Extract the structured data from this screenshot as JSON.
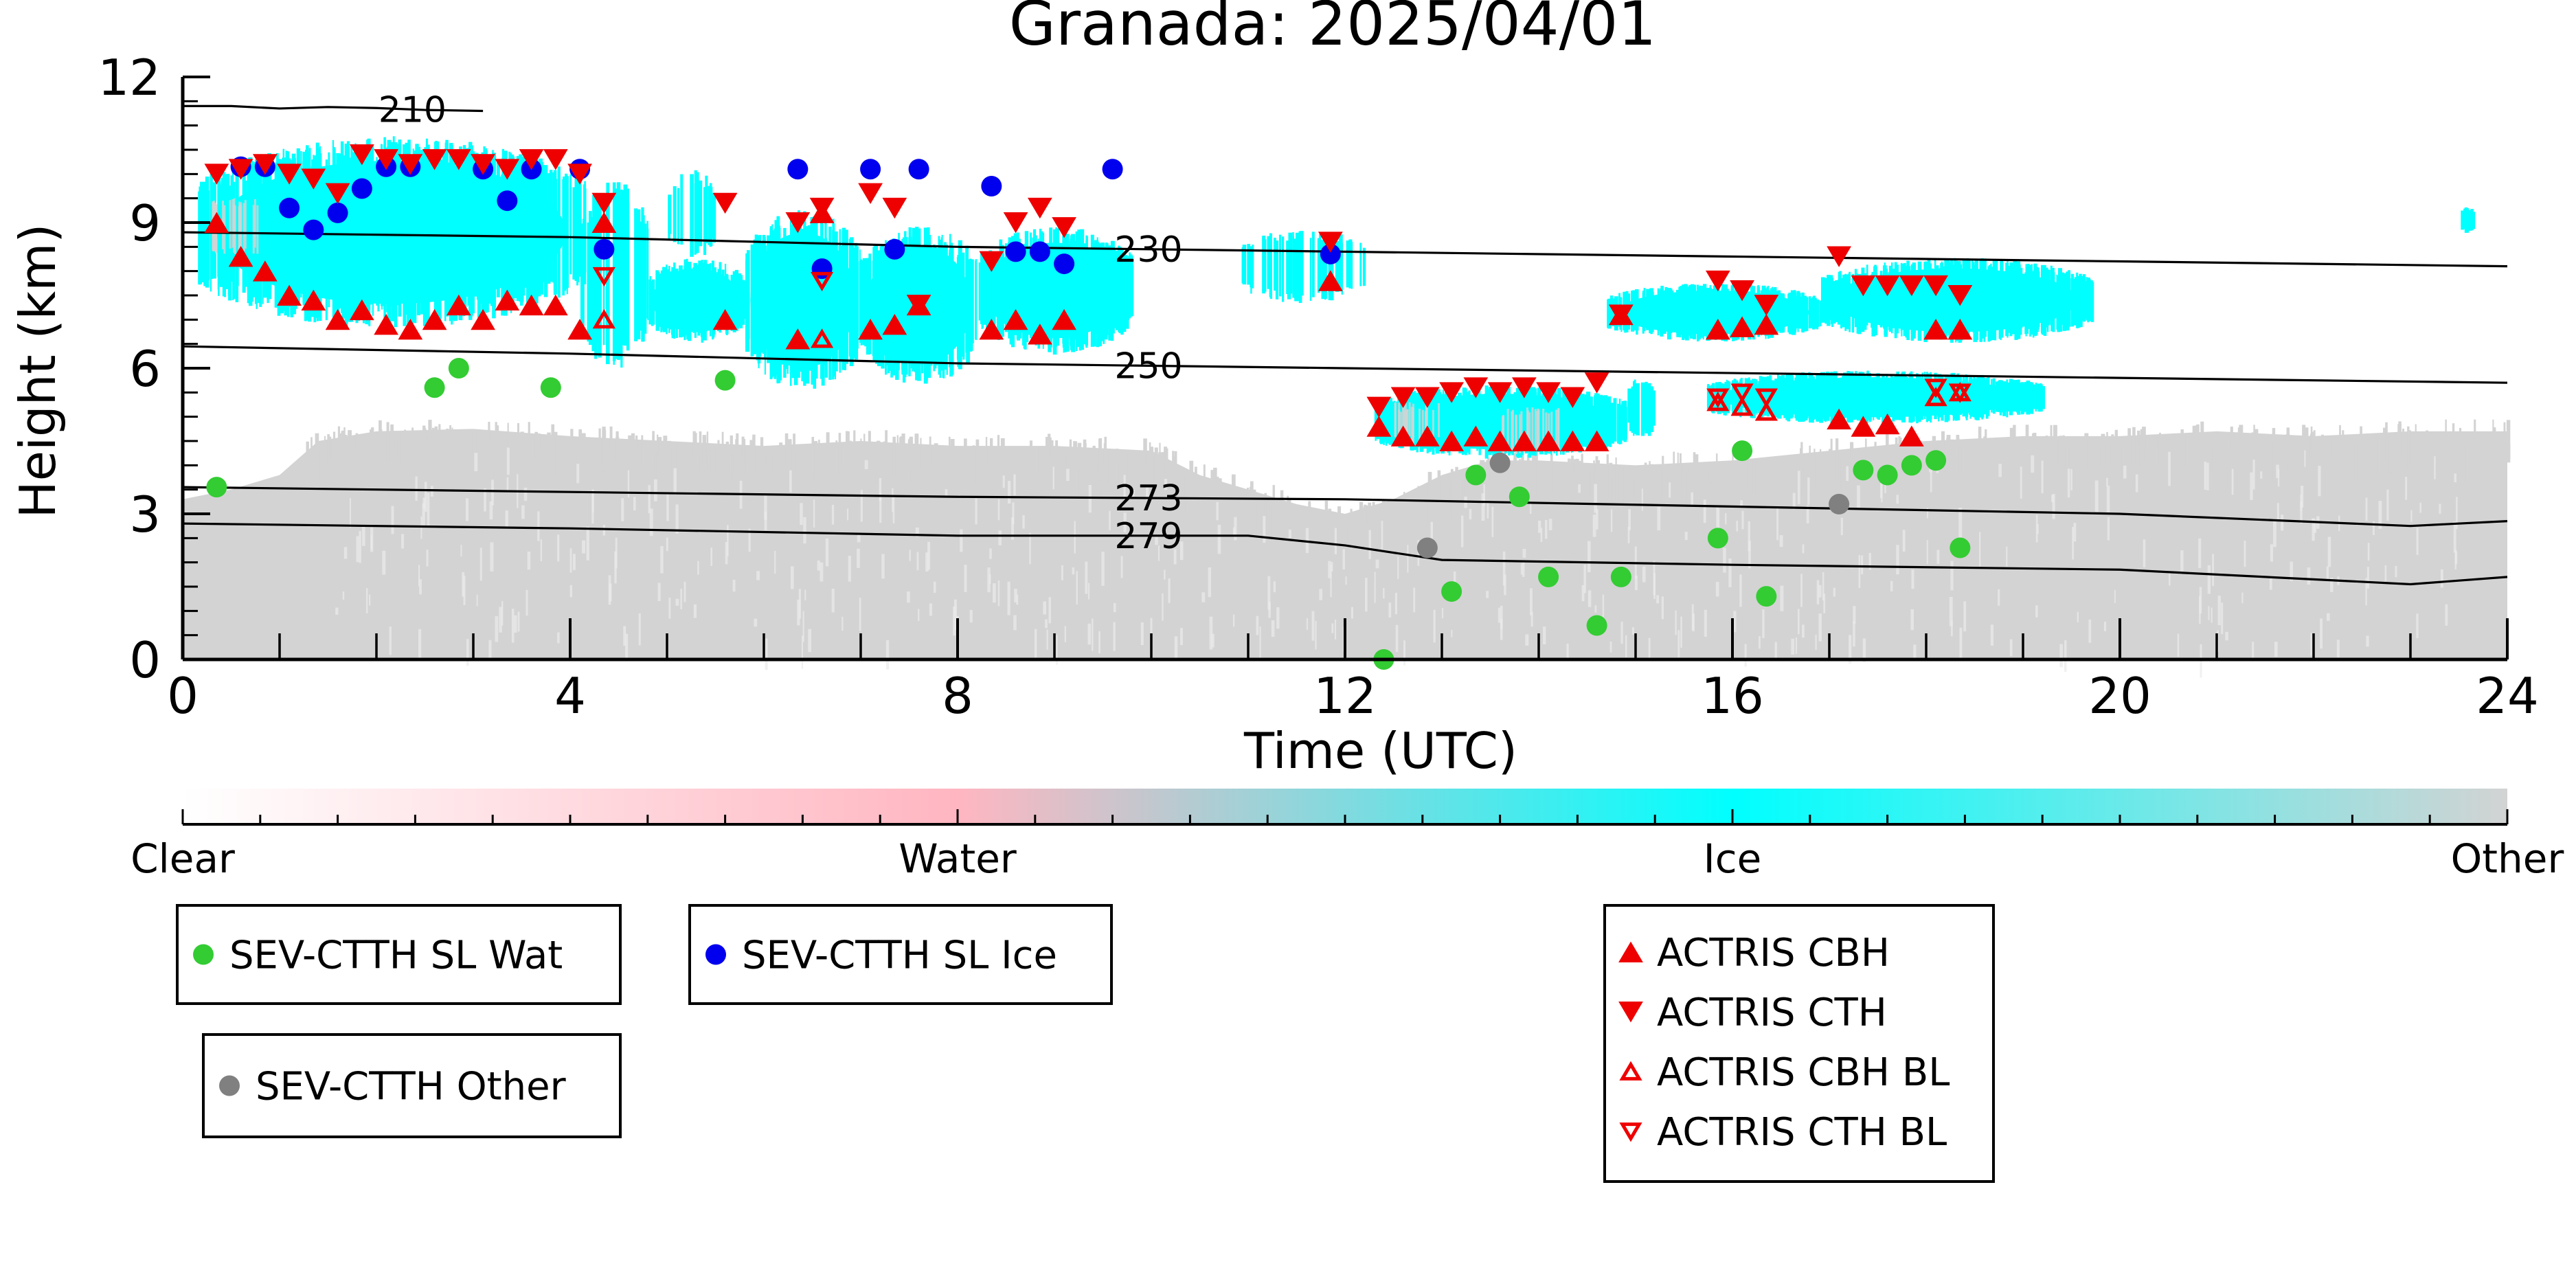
{
  "chart_data": {
    "type": "scatter",
    "title": "Granada: 2025/04/01",
    "xlabel": "Time (UTC)",
    "ylabel": "Height (km)",
    "xlim": [
      0,
      24
    ],
    "ylim": [
      0,
      12
    ],
    "xticks": [
      0,
      4,
      8,
      12,
      16,
      20,
      24
    ],
    "yticks": [
      0,
      3,
      6,
      9,
      12
    ],
    "colorbar": {
      "labels": [
        "Clear",
        "Water",
        "Ice",
        "Other"
      ],
      "colors": [
        "#ffffff",
        "#ffb6c1",
        "#00ffff",
        "#d3d3d3"
      ]
    },
    "cloud_classes": {
      "other_color": "#d3d3d3",
      "ice_color": "#00ffff"
    },
    "isotherms": [
      {
        "label": "210",
        "x": [
          0,
          0.5,
          1.0,
          1.5,
          2.0,
          2.5,
          3.1
        ],
        "y": [
          11.4,
          11.4,
          11.35,
          11.38,
          11.36,
          11.32,
          11.3
        ]
      },
      {
        "label": "230",
        "x": [
          0,
          4,
          8,
          12,
          16,
          20,
          24
        ],
        "y": [
          8.8,
          8.7,
          8.5,
          8.4,
          8.3,
          8.2,
          8.1
        ]
      },
      {
        "label": "250",
        "x": [
          0,
          4,
          8,
          12,
          16,
          20,
          24
        ],
        "y": [
          6.45,
          6.3,
          6.1,
          6.0,
          5.9,
          5.8,
          5.7
        ]
      },
      {
        "label": "273",
        "x": [
          0,
          4,
          8,
          12,
          16,
          20,
          23,
          24
        ],
        "y": [
          3.55,
          3.45,
          3.35,
          3.3,
          3.15,
          3.0,
          2.75,
          2.85
        ]
      },
      {
        "label": "279",
        "x": [
          0,
          4,
          8,
          11,
          12,
          13,
          16,
          20,
          23,
          24
        ],
        "y": [
          2.8,
          2.7,
          2.55,
          2.55,
          2.35,
          2.05,
          1.95,
          1.85,
          1.55,
          1.7
        ]
      }
    ],
    "series": [
      {
        "name": "SEV-CTTH SL Wat",
        "marker": "circle",
        "color": "#33cc33",
        "x": [
          0.35,
          2.6,
          2.85,
          3.8,
          5.6,
          12.4,
          13.1,
          13.35,
          13.8,
          14.1,
          14.6,
          14.85,
          15.85,
          16.1,
          16.35,
          17.35,
          17.6,
          17.85,
          18.1,
          18.35
        ],
        "y": [
          3.55,
          5.6,
          6.0,
          5.6,
          5.75,
          0.0,
          1.4,
          3.8,
          3.35,
          1.7,
          0.7,
          1.7,
          2.5,
          4.3,
          1.3,
          3.9,
          3.8,
          4.0,
          4.1,
          2.3
        ]
      },
      {
        "name": "SEV-CTTH SL Ice",
        "marker": "circle",
        "color": "#0000ee",
        "x": [
          0.6,
          0.85,
          1.1,
          1.35,
          1.6,
          1.85,
          2.1,
          2.35,
          3.1,
          3.35,
          3.6,
          4.1,
          4.35,
          6.35,
          6.6,
          7.1,
          7.35,
          7.6,
          8.35,
          8.6,
          8.85,
          9.1,
          9.6,
          11.85
        ],
        "y": [
          10.15,
          10.15,
          9.3,
          8.85,
          9.2,
          9.7,
          10.15,
          10.15,
          10.1,
          9.45,
          10.1,
          10.1,
          8.45,
          10.1,
          8.05,
          10.1,
          8.45,
          10.1,
          9.75,
          8.4,
          8.4,
          8.15,
          10.1,
          8.35
        ]
      },
      {
        "name": "SEV-CTTH Other",
        "marker": "circle",
        "color": "#808080",
        "x": [
          12.85,
          13.6,
          17.1
        ],
        "y": [
          2.3,
          4.05,
          3.2
        ]
      },
      {
        "name": "ACTRIS CBH",
        "marker": "triangle-up",
        "color": "#ee0000",
        "x": [
          0.35,
          0.6,
          0.85,
          1.1,
          1.35,
          1.6,
          1.85,
          2.1,
          2.35,
          2.6,
          2.85,
          3.1,
          3.35,
          3.6,
          3.85,
          4.1,
          4.35,
          5.6,
          6.35,
          6.6,
          7.1,
          7.35,
          7.6,
          8.35,
          8.6,
          8.85,
          9.1,
          11.85,
          12.35,
          12.6,
          12.85,
          13.1,
          13.35,
          13.6,
          13.85,
          14.1,
          14.35,
          14.6,
          14.85,
          15.85,
          16.1,
          16.35,
          17.1,
          17.35,
          17.6,
          17.85,
          18.1,
          18.35
        ],
        "y": [
          9.0,
          8.3,
          8.0,
          7.5,
          7.4,
          7.0,
          7.2,
          6.9,
          6.8,
          7.0,
          7.3,
          7.0,
          7.4,
          7.3,
          7.3,
          6.8,
          9.0,
          7.0,
          6.6,
          9.2,
          6.8,
          6.9,
          7.3,
          6.8,
          7.0,
          6.7,
          7.0,
          7.8,
          4.8,
          4.6,
          4.6,
          4.5,
          4.6,
          4.5,
          4.5,
          4.5,
          4.5,
          4.5,
          7.1,
          6.8,
          6.85,
          6.9,
          4.95,
          4.8,
          4.85,
          4.6,
          6.8,
          6.8
        ]
      },
      {
        "name": "ACTRIS CTH",
        "marker": "triangle-down",
        "color": "#ee0000",
        "x": [
          0.35,
          0.6,
          0.85,
          1.1,
          1.35,
          1.6,
          1.85,
          2.1,
          2.35,
          2.6,
          2.85,
          3.1,
          3.35,
          3.6,
          3.85,
          4.1,
          4.35,
          5.6,
          6.35,
          6.6,
          7.1,
          7.35,
          7.6,
          8.35,
          8.6,
          8.85,
          9.1,
          11.85,
          12.35,
          12.6,
          12.85,
          13.1,
          13.35,
          13.6,
          13.85,
          14.1,
          14.35,
          14.6,
          14.85,
          15.85,
          16.1,
          16.35,
          17.1,
          17.35,
          17.6,
          17.85,
          18.1,
          18.35
        ],
        "y": [
          10.0,
          10.1,
          10.2,
          10.0,
          9.9,
          9.6,
          10.4,
          10.3,
          10.2,
          10.3,
          10.3,
          10.2,
          10.1,
          10.3,
          10.3,
          10.0,
          9.4,
          9.4,
          9.0,
          9.3,
          9.6,
          9.3,
          7.3,
          8.2,
          9.0,
          9.3,
          8.9,
          8.6,
          5.2,
          5.4,
          5.4,
          5.5,
          5.6,
          5.5,
          5.6,
          5.5,
          5.4,
          5.7,
          7.1,
          7.8,
          7.6,
          7.3,
          8.3,
          7.7,
          7.7,
          7.7,
          7.7,
          7.5
        ]
      },
      {
        "name": "ACTRIS CBH BL",
        "marker": "triangle-up-open",
        "color": "#ee0000",
        "x": [
          4.35,
          6.6,
          15.85,
          16.1,
          16.35,
          18.1,
          18.35
        ],
        "y": [
          7.0,
          6.6,
          5.3,
          5.2,
          5.1,
          5.4,
          5.5
        ]
      },
      {
        "name": "ACTRIS CTH BL",
        "marker": "triangle-down-open",
        "color": "#ee0000",
        "x": [
          4.35,
          6.6,
          15.85,
          16.1,
          16.35,
          18.1,
          18.35
        ],
        "y": [
          7.9,
          7.8,
          5.4,
          5.5,
          5.4,
          5.6,
          5.5
        ]
      }
    ],
    "legends": [
      {
        "entries": [
          "SEV-CTTH SL Wat"
        ]
      },
      {
        "entries": [
          "SEV-CTTH SL Ice"
        ]
      },
      {
        "entries": [
          "SEV-CTTH Other"
        ]
      },
      {
        "entries": [
          "ACTRIS CBH",
          "ACTRIS CTH",
          "ACTRIS CBH BL",
          "ACTRIS CTH BL"
        ]
      }
    ],
    "grid": false
  }
}
